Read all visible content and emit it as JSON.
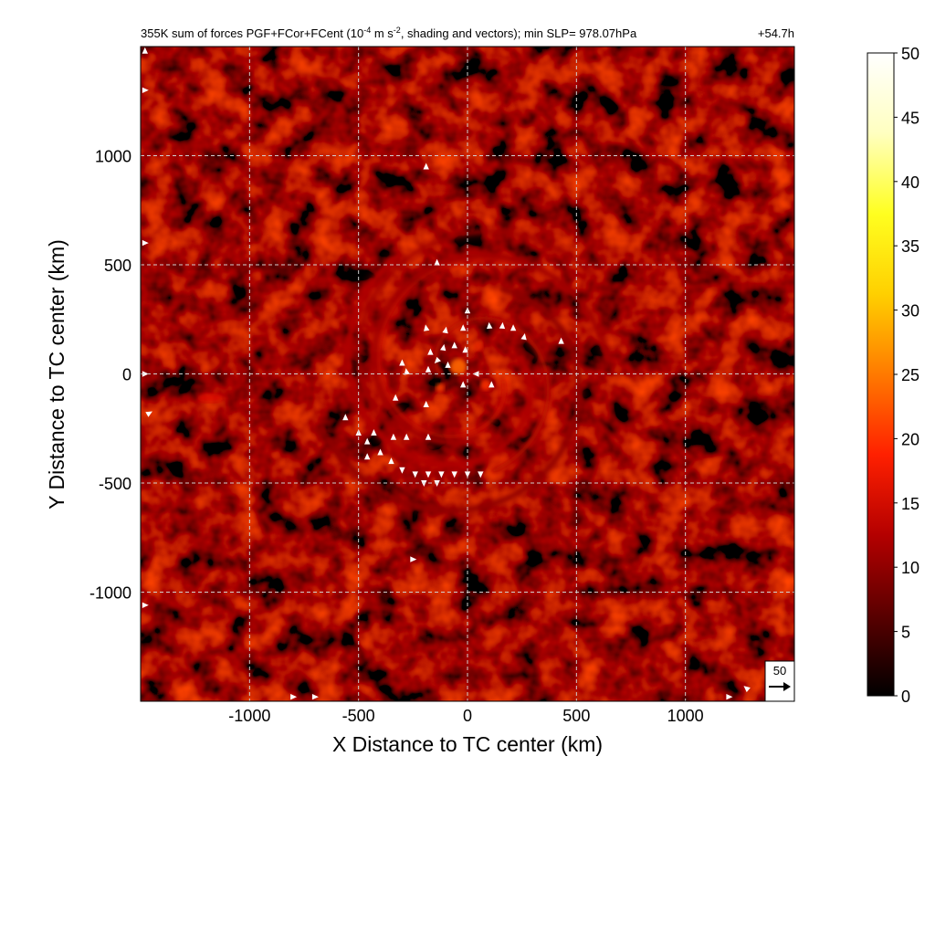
{
  "chart_data": {
    "type": "heatmap",
    "title_main": "355K sum of forces PGF+FCor+FCent (10",
    "title_exp": "-4",
    "title_mid": " m s",
    "title_exp2": "-2",
    "title_end": ", shading and vectors); min SLP= 978.07hPa",
    "time_label": "+54.7h",
    "xlabel": "X Distance to TC center (km)",
    "ylabel": "Y Distance to TC center (km)",
    "xlim": [
      -1500,
      1500
    ],
    "ylim": [
      -1500,
      1500
    ],
    "x_ticks": [
      -1000,
      -500,
      0,
      500,
      1000
    ],
    "y_ticks": [
      1000,
      500,
      0,
      -500,
      -1000
    ],
    "x_tick_labels": [
      "-1000",
      "-500",
      "0",
      "500",
      "1000"
    ],
    "y_tick_labels": [
      "1000",
      "500",
      "0",
      "-500",
      "-1000"
    ],
    "grid": true,
    "colorbar": {
      "min": 0,
      "max": 50,
      "ticks": [
        "0",
        "5",
        "10",
        "15",
        "20",
        "25",
        "30",
        "35",
        "40",
        "45",
        "50"
      ],
      "colormap": [
        "#000000",
        "#5a0000",
        "#b40000",
        "#ff2000",
        "#ff7a00",
        "#ffd000",
        "#ffff20",
        "#ffffc0",
        "#ffffff"
      ]
    },
    "reference_vector": {
      "label": "50"
    },
    "field_features": {
      "background_level": 4,
      "spiral_band_peak": 14,
      "inner_core_peak": 25
    }
  }
}
